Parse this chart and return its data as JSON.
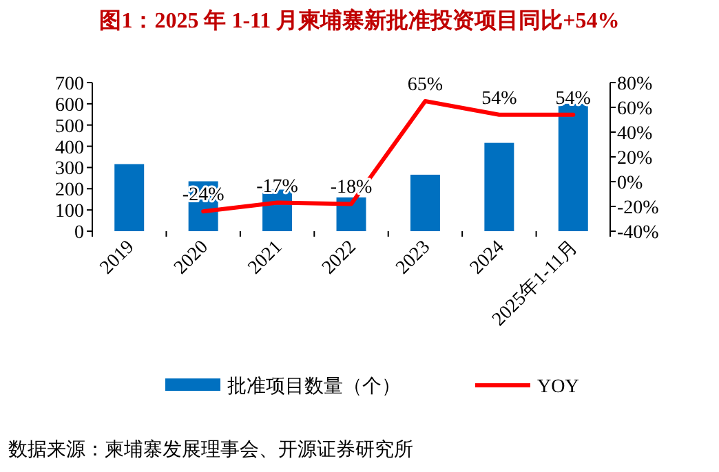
{
  "chart_data": {
    "type": "bar",
    "title": "图1：2025 年 1-11 月柬埔寨新批准投资项目同比+54%",
    "categories": [
      "2019",
      "2020",
      "2021",
      "2022",
      "2023",
      "2024",
      "2025年1-11月"
    ],
    "series": [
      {
        "name": "批准项目数量（个）",
        "type": "bar",
        "color": "#0070c0",
        "values": [
          316,
          235,
          196,
          159,
          266,
          416,
          600
        ]
      },
      {
        "name": "YOY",
        "type": "line",
        "axis": "y2",
        "color": "#ff0000",
        "values": [
          null,
          -24,
          -17,
          -18,
          65,
          54,
          54
        ],
        "value_labels": [
          null,
          "-24%",
          "-17%",
          "-18%",
          "65%",
          "54%",
          "54%"
        ]
      }
    ],
    "ylim": [
      0,
      700
    ],
    "yticks": [
      0,
      100,
      200,
      300,
      400,
      500,
      600,
      700
    ],
    "y2lim": [
      -40,
      80
    ],
    "y2ticks": [
      {
        "value": -40,
        "label": "-40%"
      },
      {
        "value": -20,
        "label": "-20%"
      },
      {
        "value": 0,
        "label": "0%"
      },
      {
        "value": 20,
        "label": "20%"
      },
      {
        "value": 40,
        "label": "40%"
      },
      {
        "value": 60,
        "label": "60%"
      },
      {
        "value": 80,
        "label": "80%"
      }
    ],
    "legend": "bottom",
    "annotations": [
      "数据来源：柬埔寨发展理事会、开源证券研究所"
    ]
  }
}
